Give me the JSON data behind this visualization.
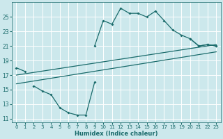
{
  "xlabel": "Humidex (Indice chaleur)",
  "bg_color": "#cce8ec",
  "grid_color": "#ffffff",
  "line_color": "#1a6b6b",
  "xlim": [
    -0.5,
    23.5
  ],
  "ylim": [
    10.5,
    27.0
  ],
  "xticks": [
    0,
    1,
    2,
    3,
    4,
    5,
    6,
    7,
    8,
    9,
    10,
    11,
    12,
    13,
    14,
    15,
    16,
    17,
    18,
    19,
    20,
    21,
    22,
    23
  ],
  "yticks": [
    11,
    13,
    15,
    17,
    19,
    21,
    23,
    25
  ],
  "upper_curve_x": [
    0,
    1,
    9,
    10,
    11,
    12,
    13,
    14,
    15,
    16,
    17,
    18,
    19,
    20,
    21,
    22,
    23
  ],
  "upper_curve_y": [
    18.0,
    17.5,
    21.0,
    24.5,
    24.0,
    26.2,
    25.5,
    25.5,
    25.0,
    25.8,
    24.5,
    23.2,
    22.5,
    22.0,
    21.0,
    21.2,
    21.0
  ],
  "lower_curve_x": [
    2,
    3,
    4,
    5,
    6,
    7,
    8,
    9,
    20,
    21,
    22,
    23
  ],
  "lower_curve_y": [
    15.5,
    14.8,
    14.3,
    12.5,
    11.8,
    11.5,
    11.5,
    16.0,
    22.0,
    21.0,
    21.2,
    21.0
  ],
  "line1_x": [
    0,
    23
  ],
  "line1_y": [
    17.0,
    21.2
  ],
  "line2_x": [
    0,
    23
  ],
  "line2_y": [
    15.8,
    20.2
  ],
  "marker_x": [
    0,
    1,
    9,
    10,
    11,
    12,
    13,
    14,
    15,
    16,
    17,
    18,
    19,
    20,
    21,
    22,
    23
  ],
  "marker_y": [
    18.0,
    17.5,
    21.0,
    24.5,
    24.0,
    26.2,
    25.5,
    25.5,
    25.0,
    25.8,
    24.5,
    23.2,
    22.5,
    22.0,
    21.0,
    21.2,
    21.0
  ],
  "marker2_x": [
    2,
    3,
    4,
    5,
    6,
    7,
    8,
    9,
    20,
    21,
    22,
    23
  ],
  "marker2_y": [
    15.5,
    14.8,
    14.3,
    12.5,
    11.8,
    11.5,
    11.5,
    16.0,
    22.0,
    21.0,
    21.2,
    21.0
  ]
}
